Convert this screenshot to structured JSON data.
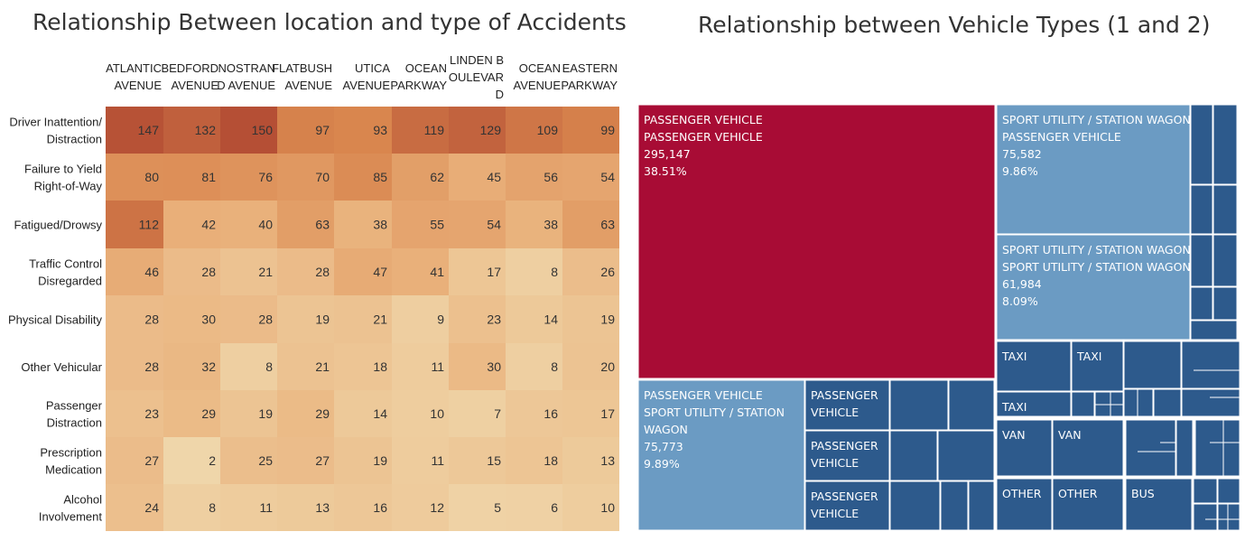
{
  "chart_data": [
    {
      "type": "heatmap",
      "title": "Relationship Between location and type of Accidents",
      "columns": [
        [
          "ATLANTIC",
          "AVENUE"
        ],
        [
          "BEDFORD",
          "AVENUE"
        ],
        [
          "NOSTRAN",
          "D AVENUE"
        ],
        [
          "FLATBUSH",
          "AVENUE"
        ],
        [
          "UTICA",
          "AVENUE"
        ],
        [
          "OCEAN",
          "PARKWAY"
        ],
        [
          "LINDEN B",
          "OULEVAR",
          "D"
        ],
        [
          "OCEAN",
          "AVENUE"
        ],
        [
          "EASTERN",
          "PARKWAY"
        ]
      ],
      "rows": [
        [
          "Driver Inattention/",
          "Distraction"
        ],
        [
          "Failure to Yield",
          "Right-of-Way"
        ],
        [
          "Fatigued/Drowsy"
        ],
        [
          "Traffic Control",
          "Disregarded"
        ],
        [
          "Physical Disability"
        ],
        [
          "Other Vehicular"
        ],
        [
          "Passenger",
          "Distraction"
        ],
        [
          "Prescription",
          "Medication"
        ],
        [
          "Alcohol",
          "Involvement"
        ]
      ],
      "values": [
        [
          147,
          132,
          150,
          97,
          93,
          119,
          129,
          109,
          99
        ],
        [
          80,
          81,
          76,
          70,
          85,
          62,
          45,
          56,
          54
        ],
        [
          112,
          42,
          40,
          63,
          38,
          55,
          54,
          38,
          63
        ],
        [
          46,
          28,
          21,
          28,
          47,
          41,
          17,
          8,
          26
        ],
        [
          28,
          30,
          28,
          19,
          21,
          9,
          23,
          14,
          19
        ],
        [
          28,
          32,
          8,
          21,
          18,
          11,
          30,
          8,
          20
        ],
        [
          23,
          29,
          19,
          29,
          14,
          10,
          7,
          16,
          17
        ],
        [
          27,
          2,
          25,
          27,
          19,
          11,
          15,
          18,
          13
        ],
        [
          24,
          8,
          11,
          13,
          16,
          12,
          5,
          6,
          10
        ]
      ],
      "color_scale": [
        "#f0d9ae",
        "#e9b07a",
        "#d9864e",
        "#b54f35"
      ]
    },
    {
      "type": "treemap",
      "title": "Relationship between Vehicle Types (1 and 2)",
      "colors": {
        "highlight": "#a80c35",
        "light": "#6b9bc3",
        "dark": "#2d5a8c"
      },
      "labeled_tiles": [
        {
          "lines": [
            "PASSENGER VEHICLE",
            "PASSENGER VEHICLE",
            "295,147",
            "38.51%"
          ],
          "value": 295147,
          "percent": 38.51,
          "tone": "highlight"
        },
        {
          "lines": [
            "SPORT UTILITY / STATION WAGON",
            "PASSENGER VEHICLE",
            "75,582",
            "9.86%"
          ],
          "value": 75582,
          "percent": 9.86,
          "tone": "light"
        },
        {
          "lines": [
            "SPORT UTILITY / STATION WAGON",
            "SPORT UTILITY / STATION WAGON",
            "61,984",
            "8.09%"
          ],
          "value": 61984,
          "percent": 8.09,
          "tone": "light"
        },
        {
          "lines": [
            "PASSENGER VEHICLE",
            "SPORT UTILITY / STATION",
            "WAGON",
            "75,773",
            "9.89%"
          ],
          "value": 75773,
          "percent": 9.89,
          "tone": "light"
        },
        {
          "lines": [
            "PASSENGER",
            "VEHICLE"
          ],
          "tone": "dark"
        },
        {
          "lines": [
            "PASSENGER",
            "VEHICLE"
          ],
          "tone": "dark"
        },
        {
          "lines": [
            "PASSENGER",
            "VEHICLE"
          ],
          "tone": "dark"
        },
        {
          "lines": [
            "TAXI"
          ],
          "tone": "dark"
        },
        {
          "lines": [
            "TAXI"
          ],
          "tone": "dark"
        },
        {
          "lines": [
            "TAXI"
          ],
          "tone": "dark"
        },
        {
          "lines": [
            "VAN"
          ],
          "tone": "dark"
        },
        {
          "lines": [
            "VAN"
          ],
          "tone": "dark"
        },
        {
          "lines": [
            "OTHER"
          ],
          "tone": "dark"
        },
        {
          "lines": [
            "OTHER"
          ],
          "tone": "dark"
        },
        {
          "lines": [
            "BUS"
          ],
          "tone": "dark"
        }
      ]
    }
  ]
}
